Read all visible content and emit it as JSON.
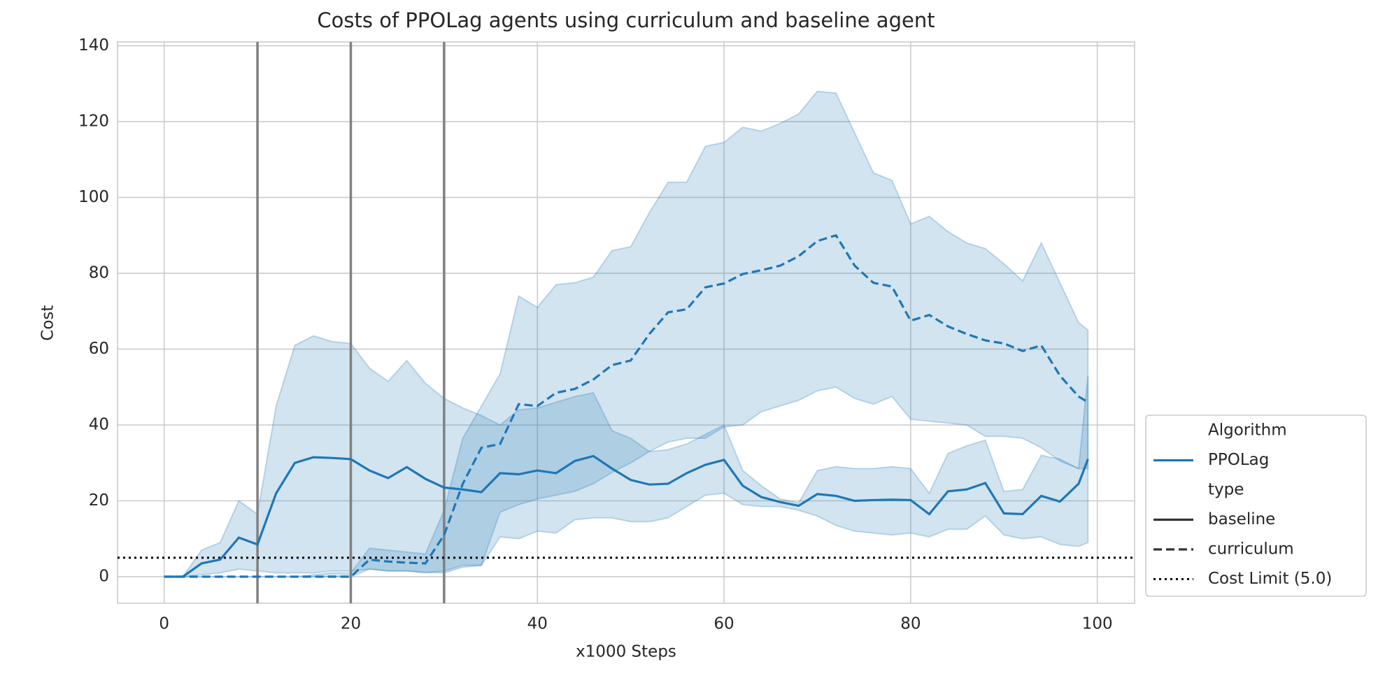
{
  "chart_data": {
    "type": "line",
    "title": "Costs of PPOLag agents using curriculum and baseline agent",
    "x_label": "x1000 Steps",
    "y_label": "Cost",
    "x": [
      0,
      2,
      4,
      6,
      8,
      10,
      12,
      14,
      16,
      18,
      20,
      22,
      24,
      26,
      28,
      30,
      32,
      34,
      36,
      38,
      40,
      42,
      44,
      46,
      48,
      50,
      52,
      54,
      56,
      58,
      60,
      62,
      64,
      66,
      68,
      70,
      72,
      74,
      76,
      78,
      80,
      82,
      84,
      86,
      88,
      90,
      92,
      94,
      96,
      98,
      99
    ],
    "series": [
      {
        "name": "baseline",
        "style": "solid",
        "color": "#1f77b4",
        "values": [
          0,
          0,
          3.5,
          4.5,
          10.3,
          8.5,
          22,
          30,
          31.5,
          31.3,
          31,
          28,
          26,
          28.9,
          25.8,
          23.5,
          23,
          22.3,
          27.3,
          27,
          28,
          27.3,
          30.5,
          31.8,
          28.5,
          25.5,
          24.3,
          24.5,
          27.3,
          29.5,
          30.8,
          24,
          21,
          19.7,
          18.7,
          21.8,
          21.3,
          20,
          20.2,
          20.3,
          20.2,
          16.5,
          22.5,
          23,
          24.7,
          16.7,
          16.5,
          21.3,
          19.8,
          24.5,
          31
        ],
        "upper": [
          0,
          0,
          7,
          9,
          20,
          16.5,
          45,
          61,
          63.5,
          62,
          61.5,
          55,
          51.5,
          57,
          51,
          47,
          44.5,
          42.5,
          40,
          44,
          44.5,
          46,
          47.5,
          48.5,
          38.5,
          36.5,
          33,
          33.5,
          35,
          37.5,
          40,
          28,
          24,
          20.5,
          19.5,
          28,
          29,
          28.5,
          28.5,
          29,
          28.5,
          22,
          32.5,
          34.5,
          36,
          22.5,
          23,
          32,
          31,
          28.5,
          53
        ],
        "lower": [
          0,
          0,
          0.5,
          1,
          2,
          1.5,
          1,
          1,
          1,
          1.5,
          1.5,
          2,
          1.5,
          1.5,
          1.2,
          1,
          2.5,
          3,
          10.5,
          10,
          12,
          11.5,
          15,
          15.5,
          15.5,
          14.5,
          14.5,
          15.5,
          18.5,
          21.5,
          22,
          19,
          18.5,
          18.5,
          17.5,
          16,
          13.5,
          12,
          11.5,
          11,
          11.5,
          10.5,
          12.5,
          12.5,
          16,
          11,
          10,
          10.5,
          8.5,
          8,
          9
        ]
      },
      {
        "name": "curriculum",
        "style": "dashed",
        "color": "#1f77b4",
        "values": [
          0,
          0,
          0,
          0,
          0,
          0,
          0,
          0,
          0,
          0,
          0,
          4.5,
          4,
          3.7,
          3.5,
          11,
          24.5,
          34,
          35,
          45.5,
          45,
          48.5,
          49.5,
          52,
          55.8,
          57,
          64,
          69.7,
          70.5,
          76.3,
          77.3,
          79.8,
          80.8,
          82,
          84.5,
          88.5,
          90,
          82,
          77.5,
          76.5,
          67.5,
          69,
          66,
          64,
          62.3,
          61.5,
          59.5,
          61,
          53,
          47.5,
          46
        ],
        "upper": [
          0,
          0,
          0,
          0,
          0,
          0,
          0,
          0,
          0.5,
          1,
          1,
          7.5,
          7,
          6.5,
          6,
          17.5,
          36.5,
          45,
          53.5,
          74,
          71,
          77,
          77.5,
          79,
          86,
          87,
          96,
          104,
          104,
          113.5,
          114.5,
          118.5,
          117.5,
          119.5,
          122,
          128,
          127.5,
          117,
          106.5,
          104.5,
          93,
          95,
          91,
          88,
          86.5,
          82.5,
          78,
          88,
          77.5,
          67,
          65
        ],
        "lower": [
          0,
          0,
          0,
          0,
          0,
          0,
          0,
          0,
          0,
          0,
          0,
          2,
          1.5,
          1.5,
          1,
          1.5,
          3,
          3,
          17,
          19,
          20.5,
          21.5,
          22.5,
          24.5,
          27.5,
          30,
          33,
          35.5,
          36.5,
          36.5,
          39.5,
          40,
          43.5,
          45,
          46.5,
          49,
          50,
          47,
          45.5,
          47.5,
          41.5,
          41,
          40.5,
          40,
          37,
          37,
          36.5,
          34,
          30.5,
          28.5,
          28.5
        ]
      }
    ],
    "band_opacity": 0.2,
    "vlines": [
      10,
      20,
      30
    ],
    "vline_color": "#808080",
    "hline": {
      "value": 5,
      "label": "Cost Limit (5.0)",
      "style": "dotted",
      "color": "#000000"
    },
    "legend": {
      "position": "outside right bottom",
      "hue_title": "Algorithm",
      "hue": "PPOLag",
      "style_title": "type"
    },
    "xlim": [
      -5,
      104
    ],
    "ylim": [
      -7,
      141
    ],
    "xticks": [
      0,
      20,
      40,
      60,
      80,
      100
    ],
    "yticks": [
      0,
      20,
      40,
      60,
      80,
      100,
      120,
      140
    ],
    "grid": true
  }
}
